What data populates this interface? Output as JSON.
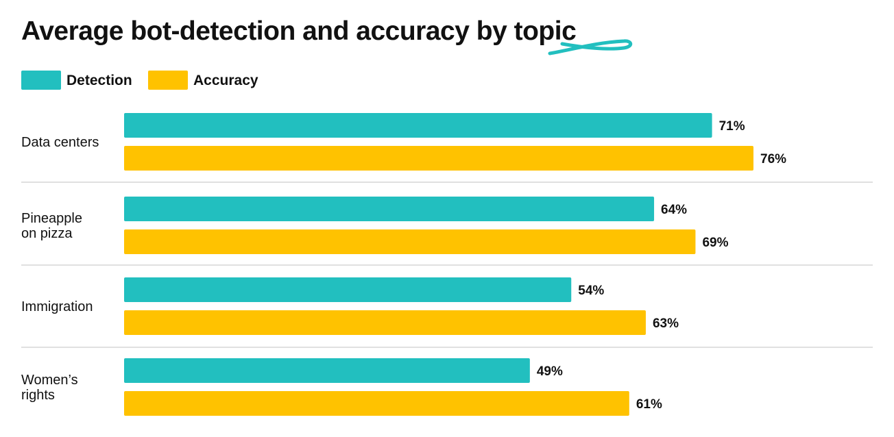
{
  "chart_data": {
    "type": "bar",
    "orientation": "horizontal",
    "title_prefix": "Average bot-detection and accuracy by ",
    "title_highlight": "topic",
    "categories": [
      "Data centers",
      "Pineapple on pizza",
      "Immigration",
      "Women’s rights"
    ],
    "category_lines": [
      [
        "Data centers"
      ],
      [
        "Pineapple",
        "on pizza"
      ],
      [
        "Immigration"
      ],
      [
        "Women’s",
        "rights"
      ]
    ],
    "series": [
      {
        "name": "Detection",
        "color": "#22bfbf",
        "values": [
          71,
          64,
          54,
          49
        ]
      },
      {
        "name": "Accuracy",
        "color": "#ffc200",
        "values": [
          76,
          69,
          63,
          61
        ]
      }
    ],
    "value_suffix": "%",
    "xlim": [
      0,
      100
    ],
    "grid": false,
    "legend_position": "top-left",
    "separator_color": "#d6d6d6",
    "highlight_color": "#22bfbf"
  }
}
